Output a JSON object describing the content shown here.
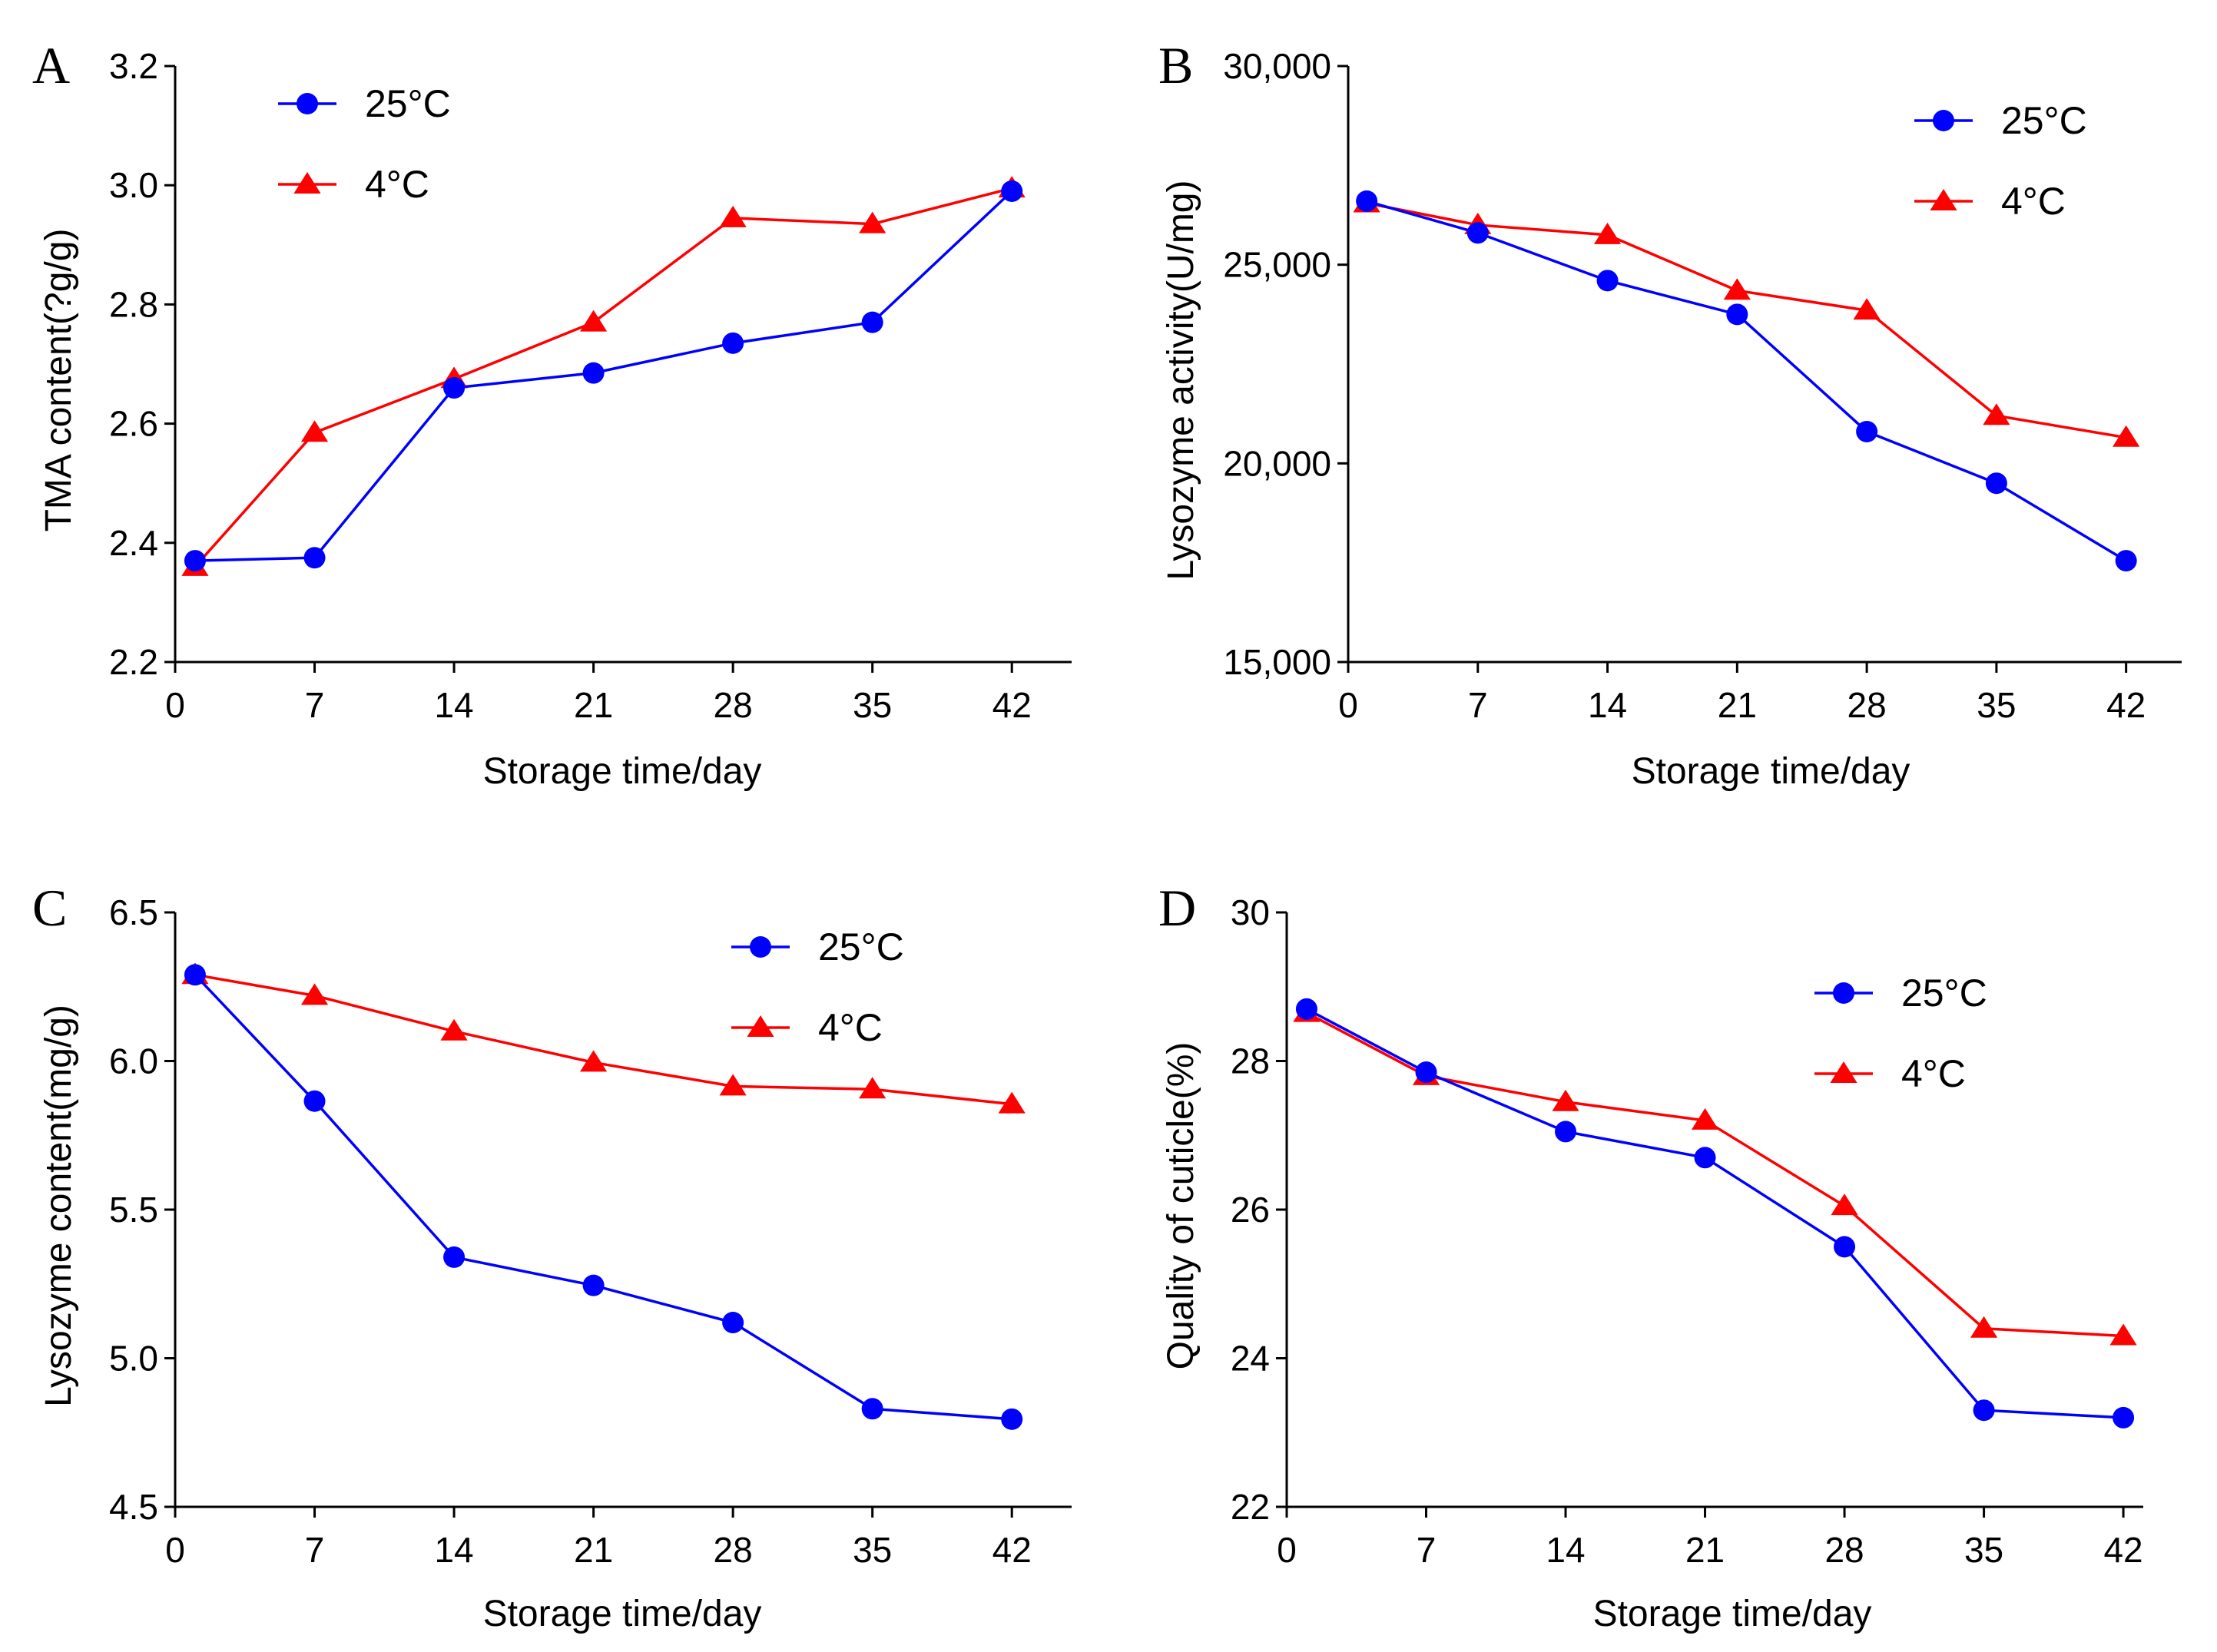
{
  "colors": {
    "series_25C": "#0000ff",
    "series_4C": "#ff0000",
    "axis": "#000000"
  },
  "chart_data": [
    {
      "panel": "A",
      "type": "line",
      "xlabel": "Storage time/day",
      "ylabel": "TMA content(?g/g)",
      "x_ticks": [
        0,
        7,
        14,
        21,
        28,
        35,
        42
      ],
      "x_tick_labels": [
        "0",
        "7",
        "14",
        "21",
        "28",
        "35",
        "42"
      ],
      "xlim": [
        0,
        45
      ],
      "ylim": [
        2.2,
        3.2
      ],
      "y_ticks": [
        2.2,
        2.4,
        2.6,
        2.8,
        3.0,
        3.2
      ],
      "y_tick_labels": [
        "2.2",
        "2.4",
        "2.6",
        "2.8",
        "3.0",
        "3.2"
      ],
      "legend_position": "top-left",
      "series": [
        {
          "name": "25°C",
          "marker": "circle",
          "x": [
            1,
            7,
            14,
            21,
            28,
            35,
            42
          ],
          "values": [
            2.37,
            2.375,
            2.66,
            2.685,
            2.735,
            2.77,
            2.99
          ]
        },
        {
          "name": "4°C",
          "marker": "triangle",
          "x": [
            1,
            7,
            14,
            21,
            28,
            35,
            42
          ],
          "values": [
            2.36,
            2.585,
            2.675,
            2.77,
            2.945,
            2.935,
            2.995
          ]
        }
      ]
    },
    {
      "panel": "B",
      "type": "line",
      "xlabel": "Storage time/day",
      "ylabel": "Lysozyme activity(U/mg)",
      "x_ticks": [
        0,
        7,
        14,
        21,
        28,
        35,
        42
      ],
      "x_tick_labels": [
        "0",
        "7",
        "14",
        "21",
        "28",
        "35",
        "42"
      ],
      "xlim": [
        0,
        45
      ],
      "ylim": [
        15000,
        30000
      ],
      "y_ticks": [
        15000,
        20000,
        25000,
        30000
      ],
      "y_tick_labels": [
        "15,000",
        "20,000",
        "25,000",
        "30,000"
      ],
      "legend_position": "top-right",
      "series": [
        {
          "name": "25°C",
          "marker": "circle",
          "x": [
            1,
            7,
            14,
            21,
            28,
            35,
            42
          ],
          "values": [
            26600,
            25800,
            24600,
            23750,
            20800,
            19500,
            17550
          ]
        },
        {
          "name": "4°C",
          "marker": "triangle",
          "x": [
            1,
            7,
            14,
            21,
            28,
            35,
            42
          ],
          "values": [
            26550,
            26000,
            25750,
            24350,
            23850,
            21200,
            20650
          ]
        }
      ]
    },
    {
      "panel": "C",
      "type": "line",
      "xlabel": "Storage time/day",
      "ylabel": "Lysozyme content(mg/g)",
      "x_ticks": [
        0,
        7,
        14,
        21,
        28,
        35,
        42
      ],
      "x_tick_labels": [
        "0",
        "7",
        "14",
        "21",
        "28",
        "35",
        "42"
      ],
      "xlim": [
        0,
        45
      ],
      "ylim": [
        4.5,
        6.5
      ],
      "y_ticks": [
        4.5,
        5.0,
        5.5,
        6.0,
        6.5
      ],
      "y_tick_labels": [
        "4.5",
        "5.0",
        "5.5",
        "6.0",
        "6.5"
      ],
      "legend_position": "top-right",
      "series": [
        {
          "name": "25°C",
          "marker": "circle",
          "x": [
            1,
            7,
            14,
            21,
            28,
            35,
            42
          ],
          "values": [
            6.29,
            5.865,
            5.34,
            5.245,
            5.12,
            4.83,
            4.795
          ]
        },
        {
          "name": "4°C",
          "marker": "triangle",
          "x": [
            1,
            7,
            14,
            21,
            28,
            35,
            42
          ],
          "values": [
            6.29,
            6.22,
            6.1,
            5.995,
            5.915,
            5.905,
            5.855
          ]
        }
      ]
    },
    {
      "panel": "D",
      "type": "line",
      "xlabel": "Storage time/day",
      "ylabel": "Quality of cuticle(%)",
      "x_ticks": [
        0,
        7,
        14,
        21,
        28,
        35,
        42
      ],
      "x_tick_labels": [
        "0",
        "7",
        "14",
        "21",
        "28",
        "35",
        "42"
      ],
      "xlim": [
        0,
        43
      ],
      "ylim": [
        22,
        30
      ],
      "y_ticks": [
        22,
        24,
        26,
        28,
        30
      ],
      "y_tick_labels": [
        "22",
        "24",
        "26",
        "28",
        "30"
      ],
      "legend_position": "top-right",
      "series": [
        {
          "name": "25°C",
          "marker": "circle",
          "x": [
            1,
            7,
            14,
            21,
            28,
            35,
            42
          ],
          "values": [
            28.7,
            27.85,
            27.05,
            26.7,
            25.5,
            23.3,
            23.2
          ]
        },
        {
          "name": "4°C",
          "marker": "triangle",
          "x": [
            1,
            7,
            14,
            21,
            28,
            35,
            42
          ],
          "values": [
            28.65,
            27.8,
            27.45,
            27.2,
            26.05,
            24.4,
            24.3
          ]
        }
      ]
    }
  ]
}
